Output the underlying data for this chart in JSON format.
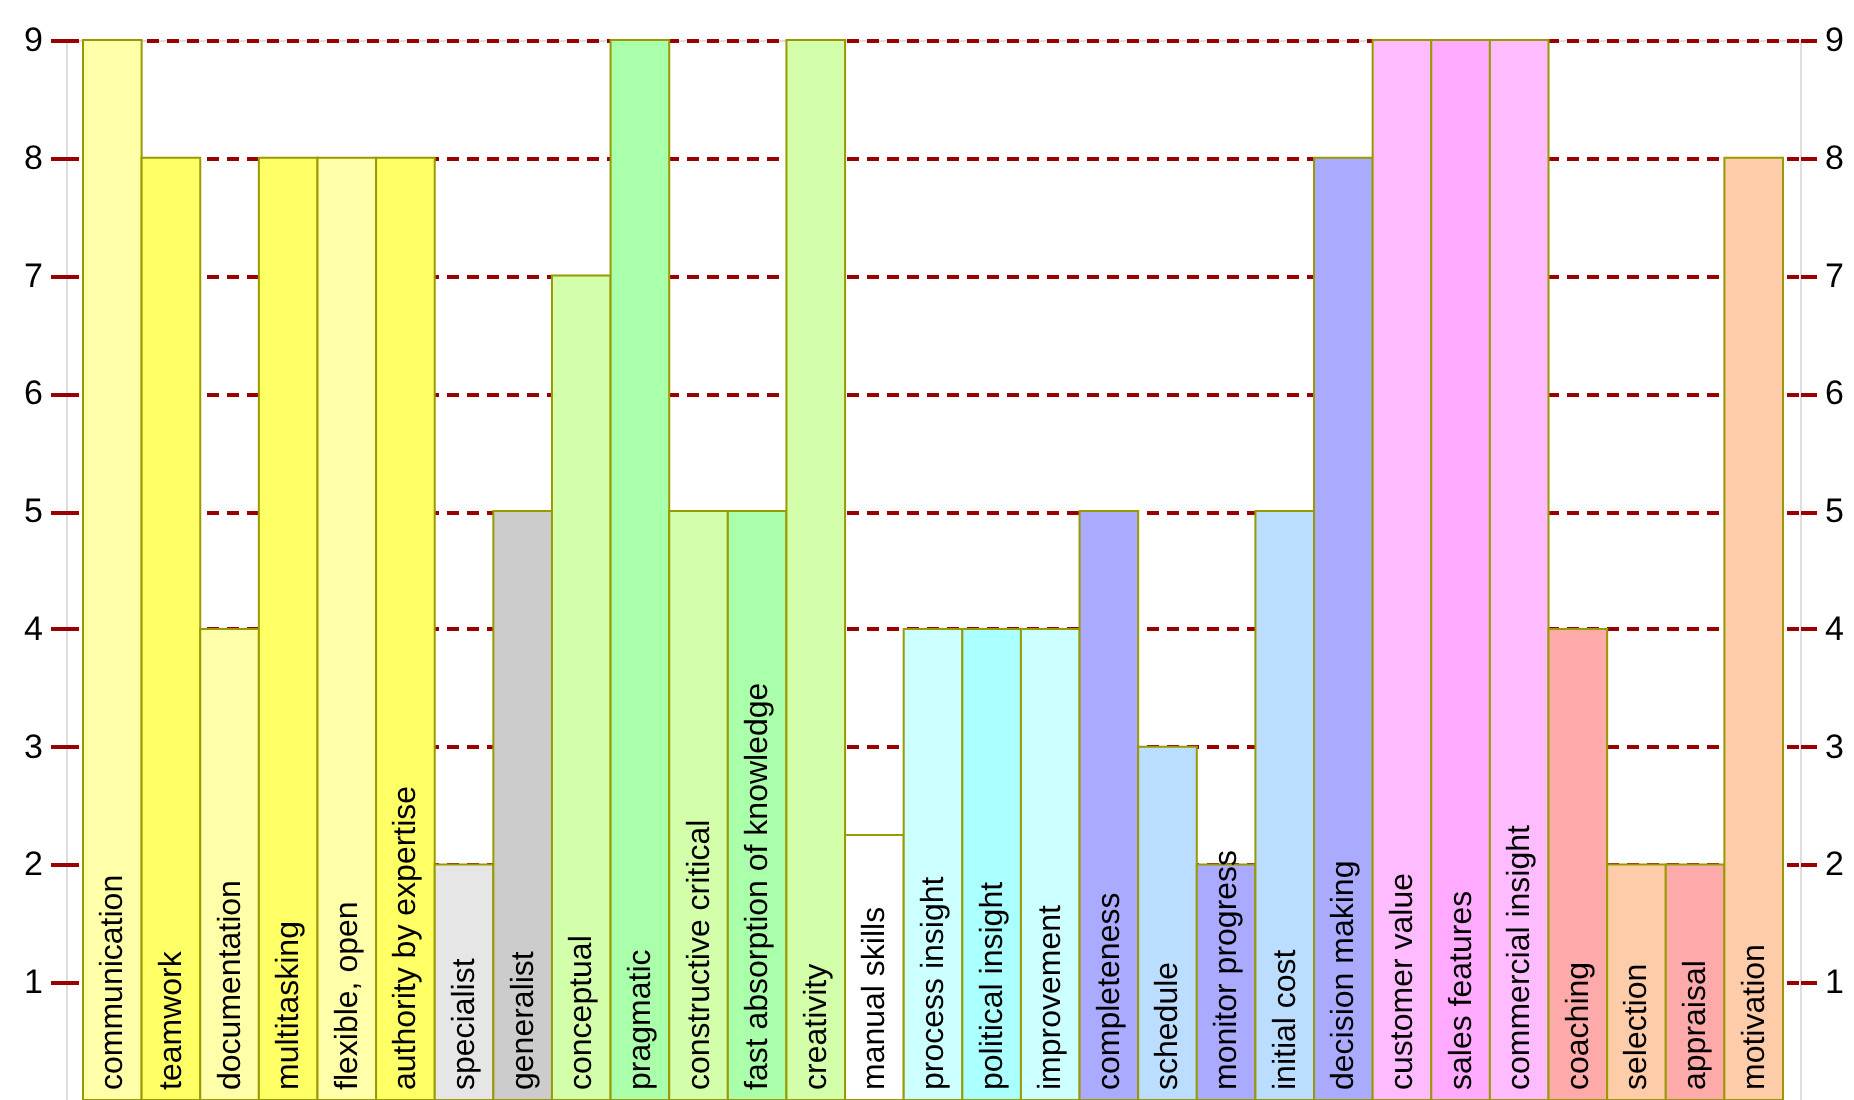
{
  "chart_data": {
    "type": "bar",
    "categories": [
      "communication",
      "teamwork",
      "documentation",
      "multitasking",
      "flexible, open",
      "authority by expertise",
      "specialist",
      "generalist",
      "conceptual",
      "pragmatic",
      "constructive critical",
      "fast absorption of knowledge",
      "creativity",
      "manual skills",
      "process insight",
      "political insight",
      "improvement",
      "completeness",
      "schedule",
      "monitor progress",
      "initial cost",
      "decision making",
      "customer value",
      "sales features",
      "commercial insight",
      "coaching",
      "selection",
      "appraisal",
      "motivation"
    ],
    "values": [
      9,
      8,
      4,
      8,
      8,
      8,
      2,
      5,
      7,
      9,
      5,
      5,
      9,
      2.25,
      4,
      4,
      4,
      5,
      3,
      2,
      5,
      8,
      9,
      9,
      9,
      4,
      2,
      2,
      8
    ],
    "colors": [
      "#ffffaa",
      "#ffff66",
      "#ffffaa",
      "#ffff66",
      "#ffffaa",
      "#ffff66",
      "#e6e6e6",
      "#cccccc",
      "#d4ffaa",
      "#aaffaa",
      "#d4ffaa",
      "#aaffaa",
      "#d4ffaa",
      "#ffffff",
      "#ccffff",
      "#aaffff",
      "#ccffff",
      "#aaaaff",
      "#bbddff",
      "#aaaaff",
      "#bbddff",
      "#aaaaff",
      "#ffbbff",
      "#ffaaff",
      "#ffbbff",
      "#ffaaaa",
      "#ffccaa",
      "#ffaaaa",
      "#ffccaa"
    ],
    "ylim": [
      0,
      9
    ],
    "yticks": [
      1,
      2,
      3,
      4,
      5,
      6,
      7,
      8,
      9
    ],
    "y2lim": [
      0,
      9
    ],
    "y2ticks": [
      1,
      2,
      3,
      4,
      5,
      6,
      7,
      8,
      9
    ],
    "grid": "y"
  }
}
